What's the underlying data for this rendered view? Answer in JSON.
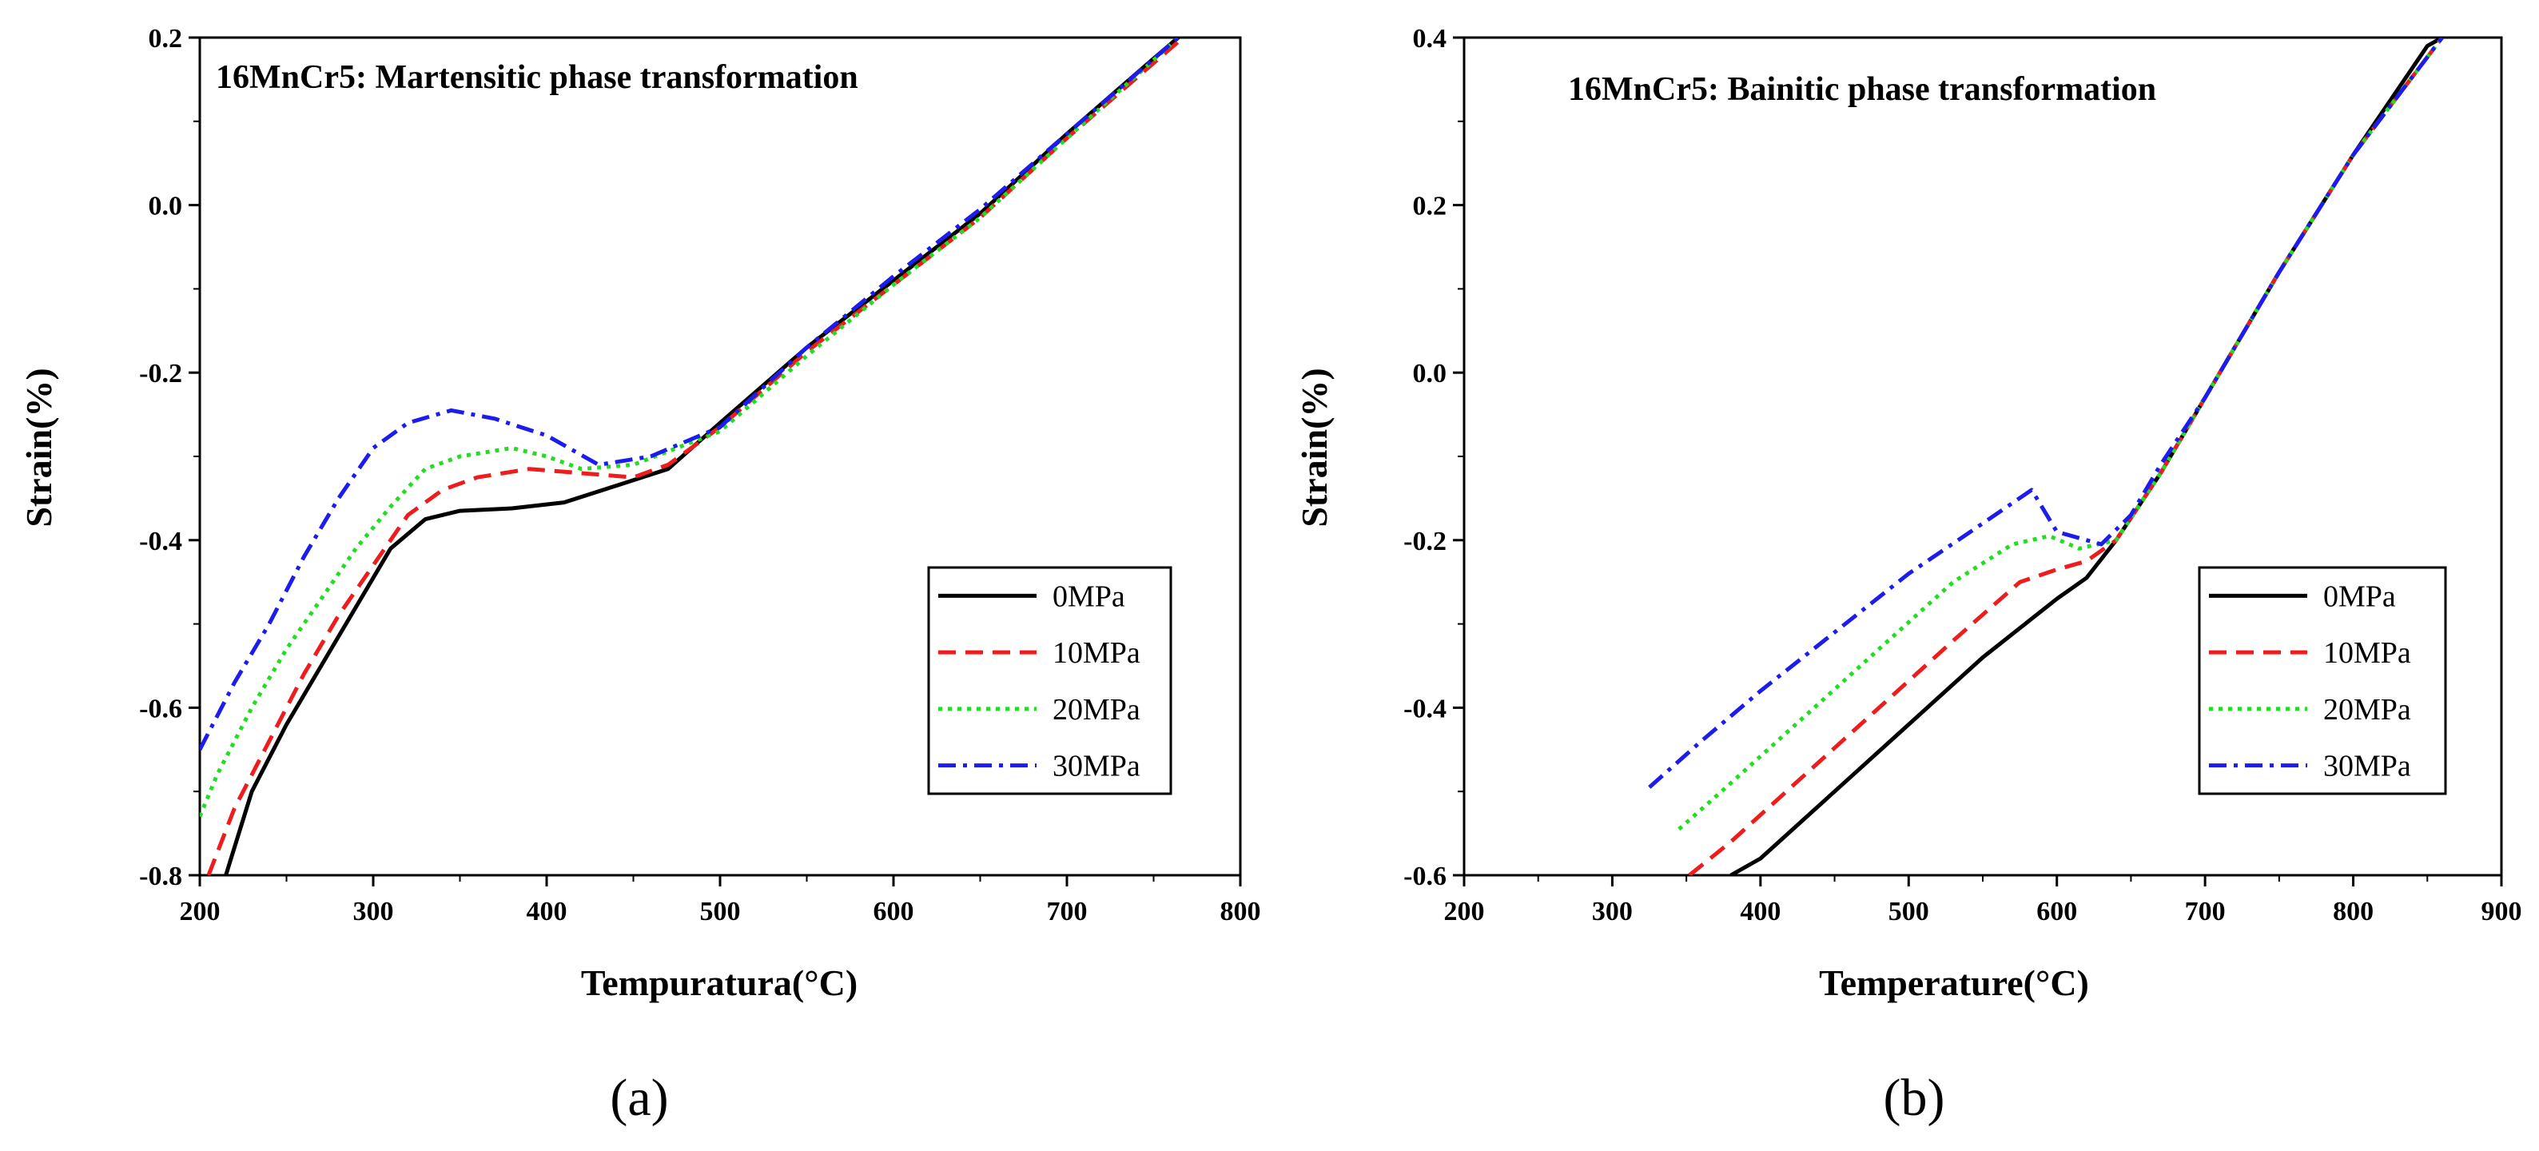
{
  "chart_data": [
    {
      "type": "line",
      "title": "16MnCr5: Martensitic phase transformation",
      "xlabel": "Tempuratura(°C)",
      "ylabel": "Strain(%)",
      "xlim": [
        200,
        800
      ],
      "ylim": [
        -0.8,
        0.2
      ],
      "xticks": [
        200,
        300,
        400,
        500,
        600,
        700,
        800
      ],
      "yticks": [
        -0.8,
        -0.6,
        -0.4,
        -0.2,
        0.0,
        0.2
      ],
      "xtick_labels": [
        "200",
        "300",
        "400",
        "500",
        "600",
        "700",
        "800"
      ],
      "ytick_labels": [
        "-0.8",
        "-0.6",
        "-0.4",
        "-0.2",
        "0.0",
        "0.2"
      ],
      "legend_position": "bottom-right",
      "panel_label": "(a)",
      "series": [
        {
          "name": "0MPa",
          "color": "#000000",
          "dash": "solid",
          "x": [
            215,
            230,
            250,
            270,
            290,
            310,
            330,
            350,
            380,
            410,
            440,
            470,
            500,
            550,
            600,
            650,
            700,
            750,
            767
          ],
          "y": [
            -0.8,
            -0.7,
            -0.62,
            -0.55,
            -0.48,
            -0.41,
            -0.375,
            -0.365,
            -0.362,
            -0.355,
            -0.335,
            -0.315,
            -0.26,
            -0.17,
            -0.09,
            -0.01,
            0.085,
            0.175,
            0.205
          ]
        },
        {
          "name": "10MPa",
          "color": "#ee1c1c",
          "dash": "dash",
          "x": [
            205,
            220,
            240,
            260,
            280,
            300,
            320,
            340,
            360,
            390,
            420,
            450,
            470,
            500,
            550,
            600,
            650,
            700,
            767
          ],
          "y": [
            -0.8,
            -0.72,
            -0.64,
            -0.56,
            -0.49,
            -0.43,
            -0.37,
            -0.34,
            -0.325,
            -0.315,
            -0.32,
            -0.325,
            -0.31,
            -0.265,
            -0.175,
            -0.095,
            -0.015,
            0.08,
            0.2
          ]
        },
        {
          "name": "20MPa",
          "color": "#22dd22",
          "dash": "dot",
          "x": [
            200,
            210,
            230,
            250,
            270,
            290,
            310,
            330,
            350,
            380,
            400,
            420,
            450,
            500,
            550,
            600,
            650,
            700,
            767
          ],
          "y": [
            -0.73,
            -0.68,
            -0.6,
            -0.53,
            -0.47,
            -0.41,
            -0.36,
            -0.315,
            -0.3,
            -0.29,
            -0.3,
            -0.315,
            -0.31,
            -0.27,
            -0.18,
            -0.095,
            -0.015,
            0.08,
            0.205
          ]
        },
        {
          "name": "30MPa",
          "color": "#1c1cee",
          "dash": "dashdot",
          "x": [
            200,
            220,
            240,
            260,
            280,
            300,
            320,
            345,
            370,
            400,
            430,
            460,
            500,
            550,
            600,
            650,
            700,
            767
          ],
          "y": [
            -0.65,
            -0.57,
            -0.5,
            -0.42,
            -0.35,
            -0.29,
            -0.26,
            -0.245,
            -0.255,
            -0.275,
            -0.31,
            -0.3,
            -0.265,
            -0.17,
            -0.085,
            -0.005,
            0.085,
            0.205
          ]
        }
      ]
    },
    {
      "type": "line",
      "title": "16MnCr5:  Bainitic phase transformation",
      "xlabel": "Temperature(°C)",
      "ylabel": "Strain(%)",
      "xlim": [
        200,
        900
      ],
      "ylim": [
        -0.6,
        0.4
      ],
      "xticks": [
        200,
        300,
        400,
        500,
        600,
        700,
        800,
        900
      ],
      "yticks": [
        -0.6,
        -0.4,
        -0.2,
        0.0,
        0.2,
        0.4
      ],
      "xtick_labels": [
        "200",
        "300",
        "400",
        "500",
        "600",
        "700",
        "800",
        "900"
      ],
      "ytick_labels": [
        "-0.6",
        "-0.4",
        "-0.2",
        "0.0",
        "0.2",
        "0.4"
      ],
      "legend_position": "bottom-right",
      "panel_label": "(b)",
      "series": [
        {
          "name": "0MPa",
          "color": "#000000",
          "dash": "solid",
          "x": [
            380,
            400,
            450,
            500,
            550,
            600,
            620,
            640,
            670,
            700,
            750,
            800,
            850,
            860
          ],
          "y": [
            -0.6,
            -0.58,
            -0.5,
            -0.42,
            -0.34,
            -0.27,
            -0.245,
            -0.2,
            -0.12,
            -0.03,
            0.12,
            0.26,
            0.39,
            0.4
          ]
        },
        {
          "name": "10MPa",
          "color": "#ee1c1c",
          "dash": "dash",
          "x": [
            352,
            380,
            430,
            480,
            530,
            575,
            600,
            620,
            640,
            670,
            700,
            750,
            800,
            860
          ],
          "y": [
            -0.6,
            -0.56,
            -0.48,
            -0.4,
            -0.32,
            -0.25,
            -0.235,
            -0.225,
            -0.2,
            -0.12,
            -0.03,
            0.12,
            0.26,
            0.4
          ]
        },
        {
          "name": "20MPa",
          "color": "#22dd22",
          "dash": "dot",
          "x": [
            345,
            380,
            430,
            480,
            530,
            570,
            595,
            615,
            640,
            670,
            700,
            750,
            800,
            860
          ],
          "y": [
            -0.545,
            -0.49,
            -0.41,
            -0.33,
            -0.25,
            -0.205,
            -0.195,
            -0.21,
            -0.2,
            -0.12,
            -0.03,
            0.12,
            0.26,
            0.4
          ]
        },
        {
          "name": "30MPa",
          "color": "#1c1cee",
          "dash": "dashdot",
          "x": [
            325,
            360,
            400,
            450,
            500,
            550,
            583,
            600,
            630,
            650,
            670,
            700,
            750,
            800,
            860
          ],
          "y": [
            -0.495,
            -0.44,
            -0.38,
            -0.31,
            -0.24,
            -0.18,
            -0.14,
            -0.19,
            -0.205,
            -0.17,
            -0.11,
            -0.03,
            0.12,
            0.26,
            0.4
          ]
        }
      ]
    }
  ]
}
